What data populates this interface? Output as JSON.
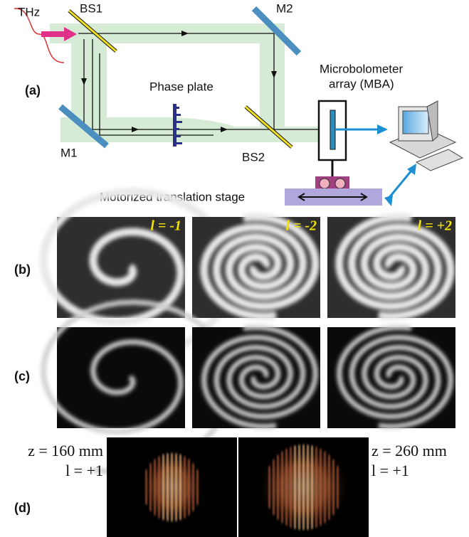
{
  "panel_a": {
    "label": "(a)",
    "source": "THz",
    "beam_splitters": [
      "BS1",
      "BS2"
    ],
    "mirrors": [
      "M1",
      "M2"
    ],
    "phase_plate": "Phase plate",
    "detector": [
      "Microbolometer",
      "array (MBA)"
    ],
    "stage": "Motorized translation stage"
  },
  "panel_b": {
    "label": "(b)",
    "images": [
      {
        "charge": "l = -1"
      },
      {
        "charge": "l = -2"
      },
      {
        "charge": "l = +2"
      }
    ]
  },
  "panel_c": {
    "label": "(c)"
  },
  "panel_d": {
    "label": "(d)",
    "images": [
      {
        "distance": "z = 160 mm",
        "charge": "l = +1"
      },
      {
        "distance": "z = 260 mm",
        "charge": "l = +1"
      }
    ]
  }
}
